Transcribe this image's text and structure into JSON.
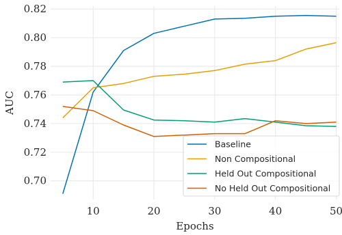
{
  "chart_data": {
    "type": "line",
    "xlabel": "Epochs",
    "ylabel": "AUC",
    "xlim": [
      3,
      50.5
    ],
    "ylim": [
      0.687,
      0.822
    ],
    "xticks": [
      10,
      20,
      30,
      40,
      50
    ],
    "xtick_labels": [
      "10",
      "20",
      "30",
      "40",
      "50"
    ],
    "yticks": [
      0.7,
      0.72,
      0.74,
      0.76,
      0.78,
      0.8,
      0.82
    ],
    "ytick_labels": [
      "0.70",
      "0.72",
      "0.74",
      "0.76",
      "0.78",
      "0.80",
      "0.82"
    ],
    "grid": true,
    "legend_position": "bottom-right",
    "x": [
      5,
      10,
      15,
      20,
      25,
      30,
      35,
      40,
      45,
      50
    ],
    "series": [
      {
        "name": "Baseline",
        "color": "#0072b2",
        "values": [
          0.691,
          0.762,
          0.791,
          0.803,
          0.808,
          0.813,
          0.8135,
          0.815,
          0.8155,
          0.815
        ]
      },
      {
        "name": "Non Compositional",
        "color": "#e69f00",
        "values": [
          0.744,
          0.765,
          0.768,
          0.773,
          0.7745,
          0.777,
          0.7815,
          0.784,
          0.792,
          0.7965
        ]
      },
      {
        "name": "Held Out Compositional",
        "color": "#009e73",
        "values": [
          0.769,
          0.77,
          0.7495,
          0.7425,
          0.742,
          0.741,
          0.7435,
          0.741,
          0.7385,
          0.738
        ]
      },
      {
        "name": "No Held Out Compositional",
        "color": "#d55e00",
        "values": [
          0.752,
          0.749,
          0.739,
          0.731,
          0.732,
          0.733,
          0.733,
          0.742,
          0.74,
          0.741
        ]
      }
    ]
  }
}
